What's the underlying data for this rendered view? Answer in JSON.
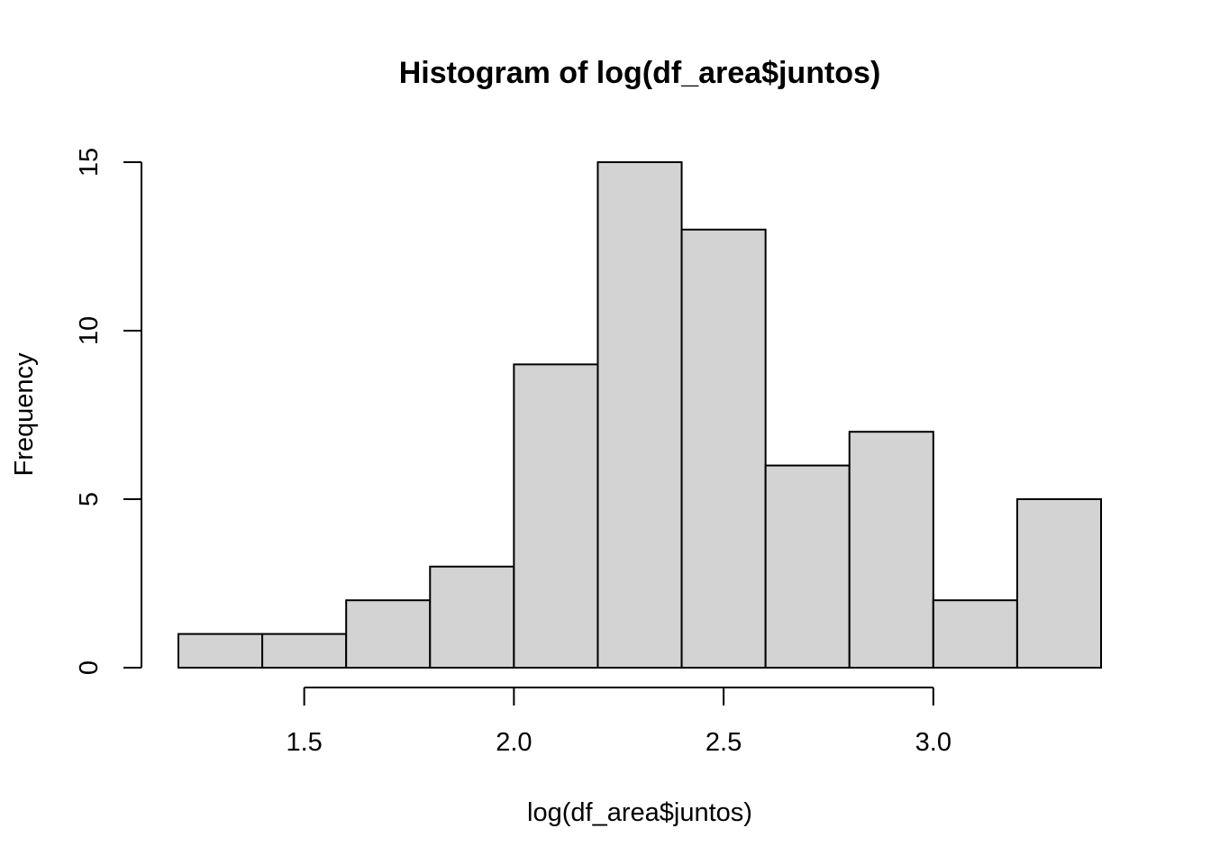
{
  "chart_data": {
    "type": "bar",
    "title": "Histogram of log(df_area$juntos)",
    "xlabel": "log(df_area$juntos)",
    "ylabel": "Frequency",
    "bin_edges": [
      1.2,
      1.4,
      1.6,
      1.8,
      2.0,
      2.2,
      2.4,
      2.6,
      2.8,
      3.0,
      3.2,
      3.4
    ],
    "values": [
      1,
      1,
      2,
      3,
      9,
      15,
      13,
      6,
      7,
      2,
      5
    ],
    "xlim": [
      1.2,
      3.4
    ],
    "ylim": [
      0,
      15
    ],
    "x_ticks": [
      1.5,
      2.0,
      2.5,
      3.0
    ],
    "x_tick_labels": [
      "1.5",
      "2.0",
      "2.5",
      "3.0"
    ],
    "y_ticks": [
      0,
      5,
      10,
      15
    ],
    "y_tick_labels": [
      "0",
      "5",
      "10",
      "15"
    ],
    "bar_fill": "#d3d3d3",
    "bar_stroke": "#000000",
    "grid": false,
    "legend": "none"
  }
}
